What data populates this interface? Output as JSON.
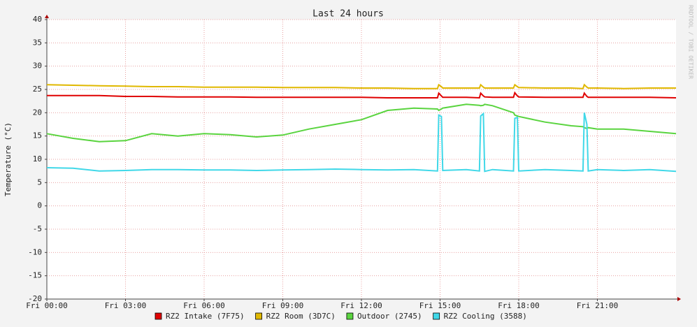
{
  "chart_data": {
    "type": "line",
    "title": "Last 24 hours",
    "y_label": "Temperature (°C)",
    "watermark": "RRDTOOL / TOBI OETIKER",
    "x": [
      0,
      1,
      2,
      3,
      4,
      5,
      6,
      7,
      8,
      9,
      10,
      11,
      12,
      13,
      14,
      14.9,
      14.95,
      15.05,
      15.1,
      16,
      16.5,
      16.55,
      16.65,
      16.7,
      17,
      17.8,
      17.85,
      17.95,
      18,
      19,
      20,
      20.45,
      20.5,
      20.6,
      20.65,
      21,
      22,
      23,
      24
    ],
    "xlim": [
      0,
      24
    ],
    "xticks": [
      {
        "value": 0,
        "label": "Fri 00:00"
      },
      {
        "value": 3,
        "label": "Fri 03:00"
      },
      {
        "value": 6,
        "label": "Fri 06:00"
      },
      {
        "value": 9,
        "label": "Fri 09:00"
      },
      {
        "value": 12,
        "label": "Fri 12:00"
      },
      {
        "value": 15,
        "label": "Fri 15:00"
      },
      {
        "value": 18,
        "label": "Fri 18:00"
      },
      {
        "value": 21,
        "label": "Fri 21:00"
      }
    ],
    "ylim": [
      -20,
      40
    ],
    "yticks": [
      -20,
      -15,
      -10,
      -5,
      0,
      5,
      10,
      15,
      20,
      25,
      30,
      35,
      40
    ],
    "grid": true,
    "series": [
      {
        "name": "RZ2 Intake (7F75)",
        "color": "#e00000",
        "values": [
          23.7,
          23.7,
          23.7,
          23.5,
          23.5,
          23.4,
          23.4,
          23.4,
          23.3,
          23.3,
          23.3,
          23.3,
          23.3,
          23.2,
          23.2,
          23.2,
          24.2,
          23.6,
          23.3,
          23.3,
          23.2,
          24.2,
          23.6,
          23.4,
          23.3,
          23.3,
          24.3,
          23.6,
          23.4,
          23.3,
          23.3,
          23.3,
          24.2,
          23.5,
          23.3,
          23.3,
          23.3,
          23.3,
          23.2
        ]
      },
      {
        "name": "RZ2 Room (3D7C)",
        "color": "#e0b800",
        "values": [
          26,
          25.9,
          25.8,
          25.7,
          25.6,
          25.6,
          25.5,
          25.5,
          25.5,
          25.4,
          25.4,
          25.4,
          25.3,
          25.3,
          25.2,
          25.2,
          26,
          25.6,
          25.3,
          25.3,
          25.3,
          26,
          25.5,
          25.3,
          25.3,
          25.3,
          26,
          25.6,
          25.4,
          25.3,
          25.3,
          25.2,
          26,
          25.5,
          25.3,
          25.3,
          25.2,
          25.3,
          25.3
        ]
      },
      {
        "name": "Outdoor (2745)",
        "color": "#5ad43f",
        "values": [
          15.5,
          14.5,
          13.8,
          14,
          15.5,
          15,
          15.5,
          15.3,
          14.8,
          15.2,
          16.5,
          17.5,
          18.5,
          20.5,
          21,
          20.8,
          20.5,
          20.8,
          21,
          21.8,
          21.6,
          21.5,
          21.6,
          21.8,
          21.5,
          20,
          19.5,
          19.3,
          19.2,
          18,
          17.2,
          17,
          16.8,
          16.6,
          16.8,
          16.5,
          16.5,
          16,
          15.5
        ]
      },
      {
        "name": "RZ2 Cooling (3588)",
        "color": "#40d8e8",
        "values": [
          8.2,
          8.1,
          7.5,
          7.6,
          7.8,
          7.8,
          7.7,
          7.7,
          7.6,
          7.7,
          7.8,
          7.9,
          7.8,
          7.7,
          7.8,
          7.5,
          19.5,
          19.2,
          7.6,
          7.8,
          7.5,
          19.3,
          19.8,
          7.4,
          7.8,
          7.5,
          18.8,
          19,
          7.5,
          7.8,
          7.6,
          7.5,
          20,
          17.5,
          7.5,
          7.8,
          7.6,
          7.8,
          7.4
        ]
      }
    ]
  }
}
